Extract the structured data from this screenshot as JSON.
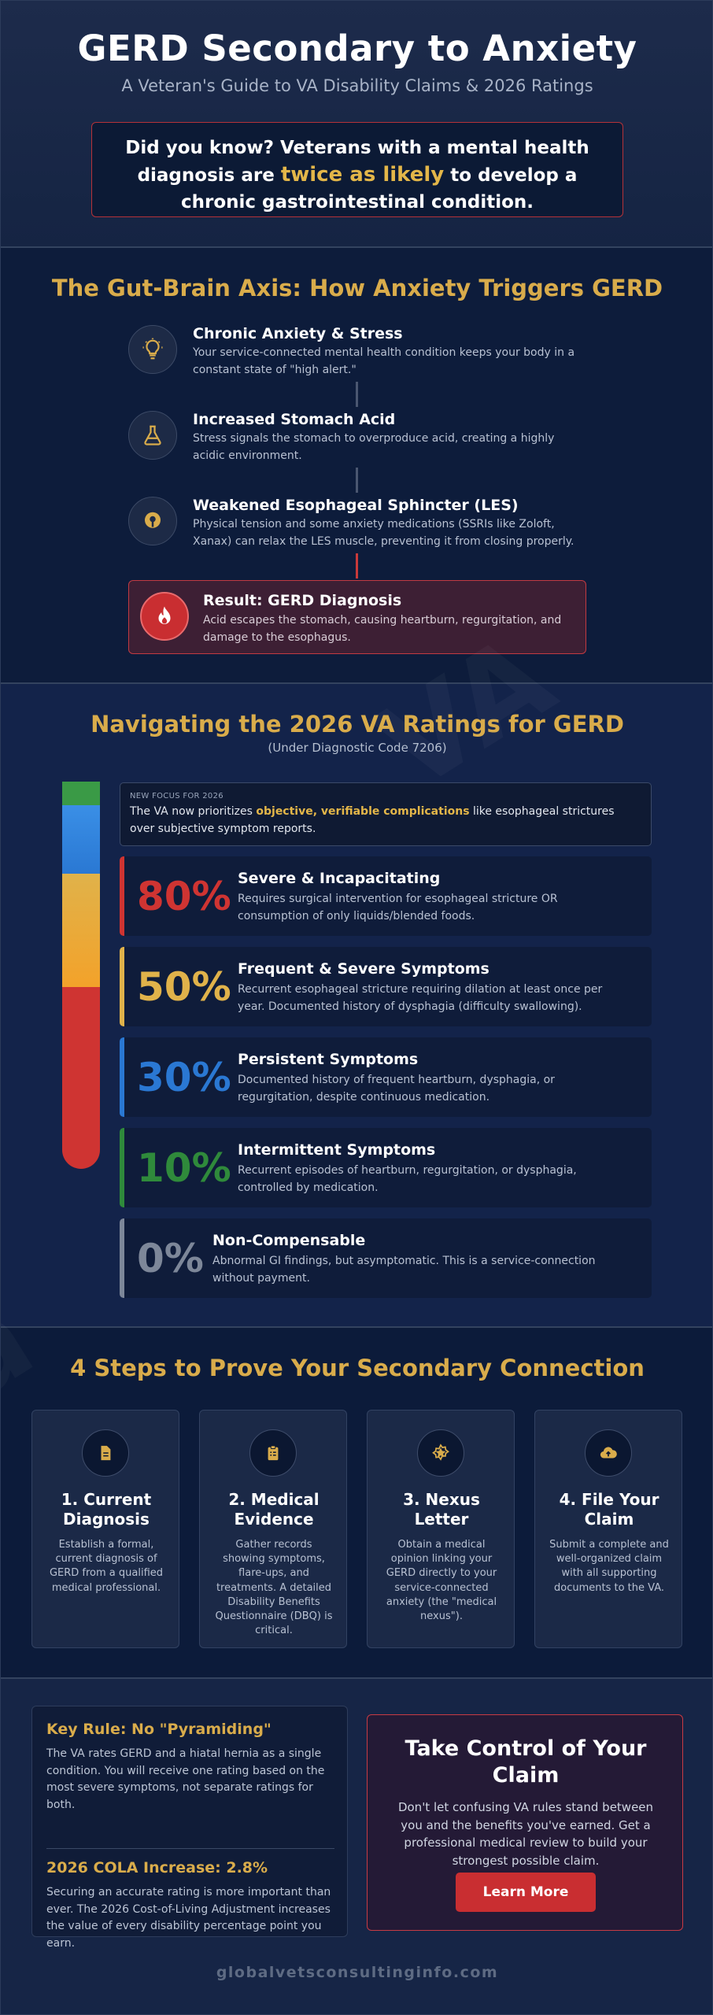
{
  "hero": {
    "title": "GERD Secondary to Anxiety",
    "subtitle": "A Veteran's Guide to VA Disability Claims & 2026 Ratings",
    "callout_part1": "Did you know? Veterans with a mental health diagnosis are ",
    "callout_highlight": "twice as likely",
    "callout_part2": " to develop a chronic gastrointestinal condition."
  },
  "gut_brain": {
    "heading": "The Gut-Brain Axis: How Anxiety Triggers GERD",
    "steps": [
      {
        "title": "Chronic Anxiety & Stress",
        "desc": "Your service-connected mental health condition keeps your body in a constant state of \"high alert.\"",
        "icon": "lightbulb-icon"
      },
      {
        "title": "Increased Stomach Acid",
        "desc": "Stress signals the stomach to overproduce acid, creating a highly acidic environment.",
        "icon": "flask-icon"
      },
      {
        "title": "Weakened Esophageal Sphincter (LES)",
        "desc": "Physical tension and some anxiety medications (SSRIs like Zoloft, Xanax) can relax the LES muscle, preventing it from closing properly.",
        "icon": "muscle-icon"
      }
    ],
    "result": {
      "title": "Result: GERD Diagnosis",
      "desc": "Acid escapes the stomach, causing heartburn, regurgitation, and damage to the esophagus.",
      "icon": "flame-icon"
    }
  },
  "ratings": {
    "heading": "Navigating the 2026 VA Ratings for GERD",
    "subheading": "(Under Diagnostic Code 7206)",
    "focus_label": "NEW FOCUS FOR 2026",
    "focus_part1": "The VA now prioritizes ",
    "focus_highlight": "objective, verifiable complications",
    "focus_part2": " like esophageal strictures over subjective symptom reports.",
    "items": [
      {
        "percent": "80%",
        "title": "Severe & Incapacitating",
        "desc": "Requires surgical intervention for esophageal stricture OR consumption of only liquids/blended foods.",
        "color": "#cf3432"
      },
      {
        "percent": "50%",
        "title": "Frequent & Severe Symptoms",
        "desc": "Recurrent esophageal stricture requiring dilation at least once per year. Documented history of dysphagia (difficulty swallowing).",
        "color": "#e0b24a"
      },
      {
        "percent": "30%",
        "title": "Persistent Symptoms",
        "desc": "Documented history of frequent heartburn, dysphagia, or regurgitation, despite continuous medication.",
        "color": "#2a78d3"
      },
      {
        "percent": "10%",
        "title": "Intermittent Symptoms",
        "desc": "Recurrent episodes of heartburn, regurgitation, or dysphagia, controlled by medication.",
        "color": "#2f8a3b"
      },
      {
        "percent": "0%",
        "title": "Non-Compensable",
        "desc": "Abnormal GI findings, but asymptomatic. This is a service-connection without payment.",
        "color": "#7d8799"
      }
    ]
  },
  "steps": {
    "heading": "4 Steps to Prove Your Secondary Connection",
    "items": [
      {
        "title": "1. Current Diagnosis",
        "desc": "Establish a formal, current diagnosis of GERD from a qualified medical professional.",
        "icon": "document-icon"
      },
      {
        "title": "2. Medical Evidence",
        "desc": "Gather records showing symptoms, flare-ups, and treatments. A detailed Disability Benefits Questionnaire (DBQ) is critical.",
        "icon": "clipboard-icon"
      },
      {
        "title": "3. Nexus Letter",
        "desc": "Obtain a medical opinion linking your GERD directly to your service-connected anxiety (the \"medical nexus\").",
        "icon": "star-badge-icon"
      },
      {
        "title": "4. File Your Claim",
        "desc": "Submit a complete and well-organized claim with all supporting documents to the VA.",
        "icon": "cloud-upload-icon"
      }
    ]
  },
  "info": {
    "rule_title": "Key Rule: No \"Pyramiding\"",
    "rule_text": "The VA rates GERD and a hiatal hernia as a single condition. You will receive one rating based on the most severe symptoms, not separate ratings for both.",
    "cola_title": "2026 COLA Increase: 2.8%",
    "cola_text": "Securing an accurate rating is more important than ever. The 2026 Cost-of-Living Adjustment increases the value of every disability percentage point you earn."
  },
  "cta": {
    "title": "Take Control of Your Claim",
    "text": "Don't let confusing VA rules stand between you and the benefits you've earned. Get a professional medical review to build your strongest possible claim.",
    "button": "Learn More"
  },
  "footer": "globalvetsconsultinginfo.com",
  "colors": {
    "gold": "#d9ac4b",
    "red": "#c92e31",
    "navy": "#0f1d3a"
  }
}
